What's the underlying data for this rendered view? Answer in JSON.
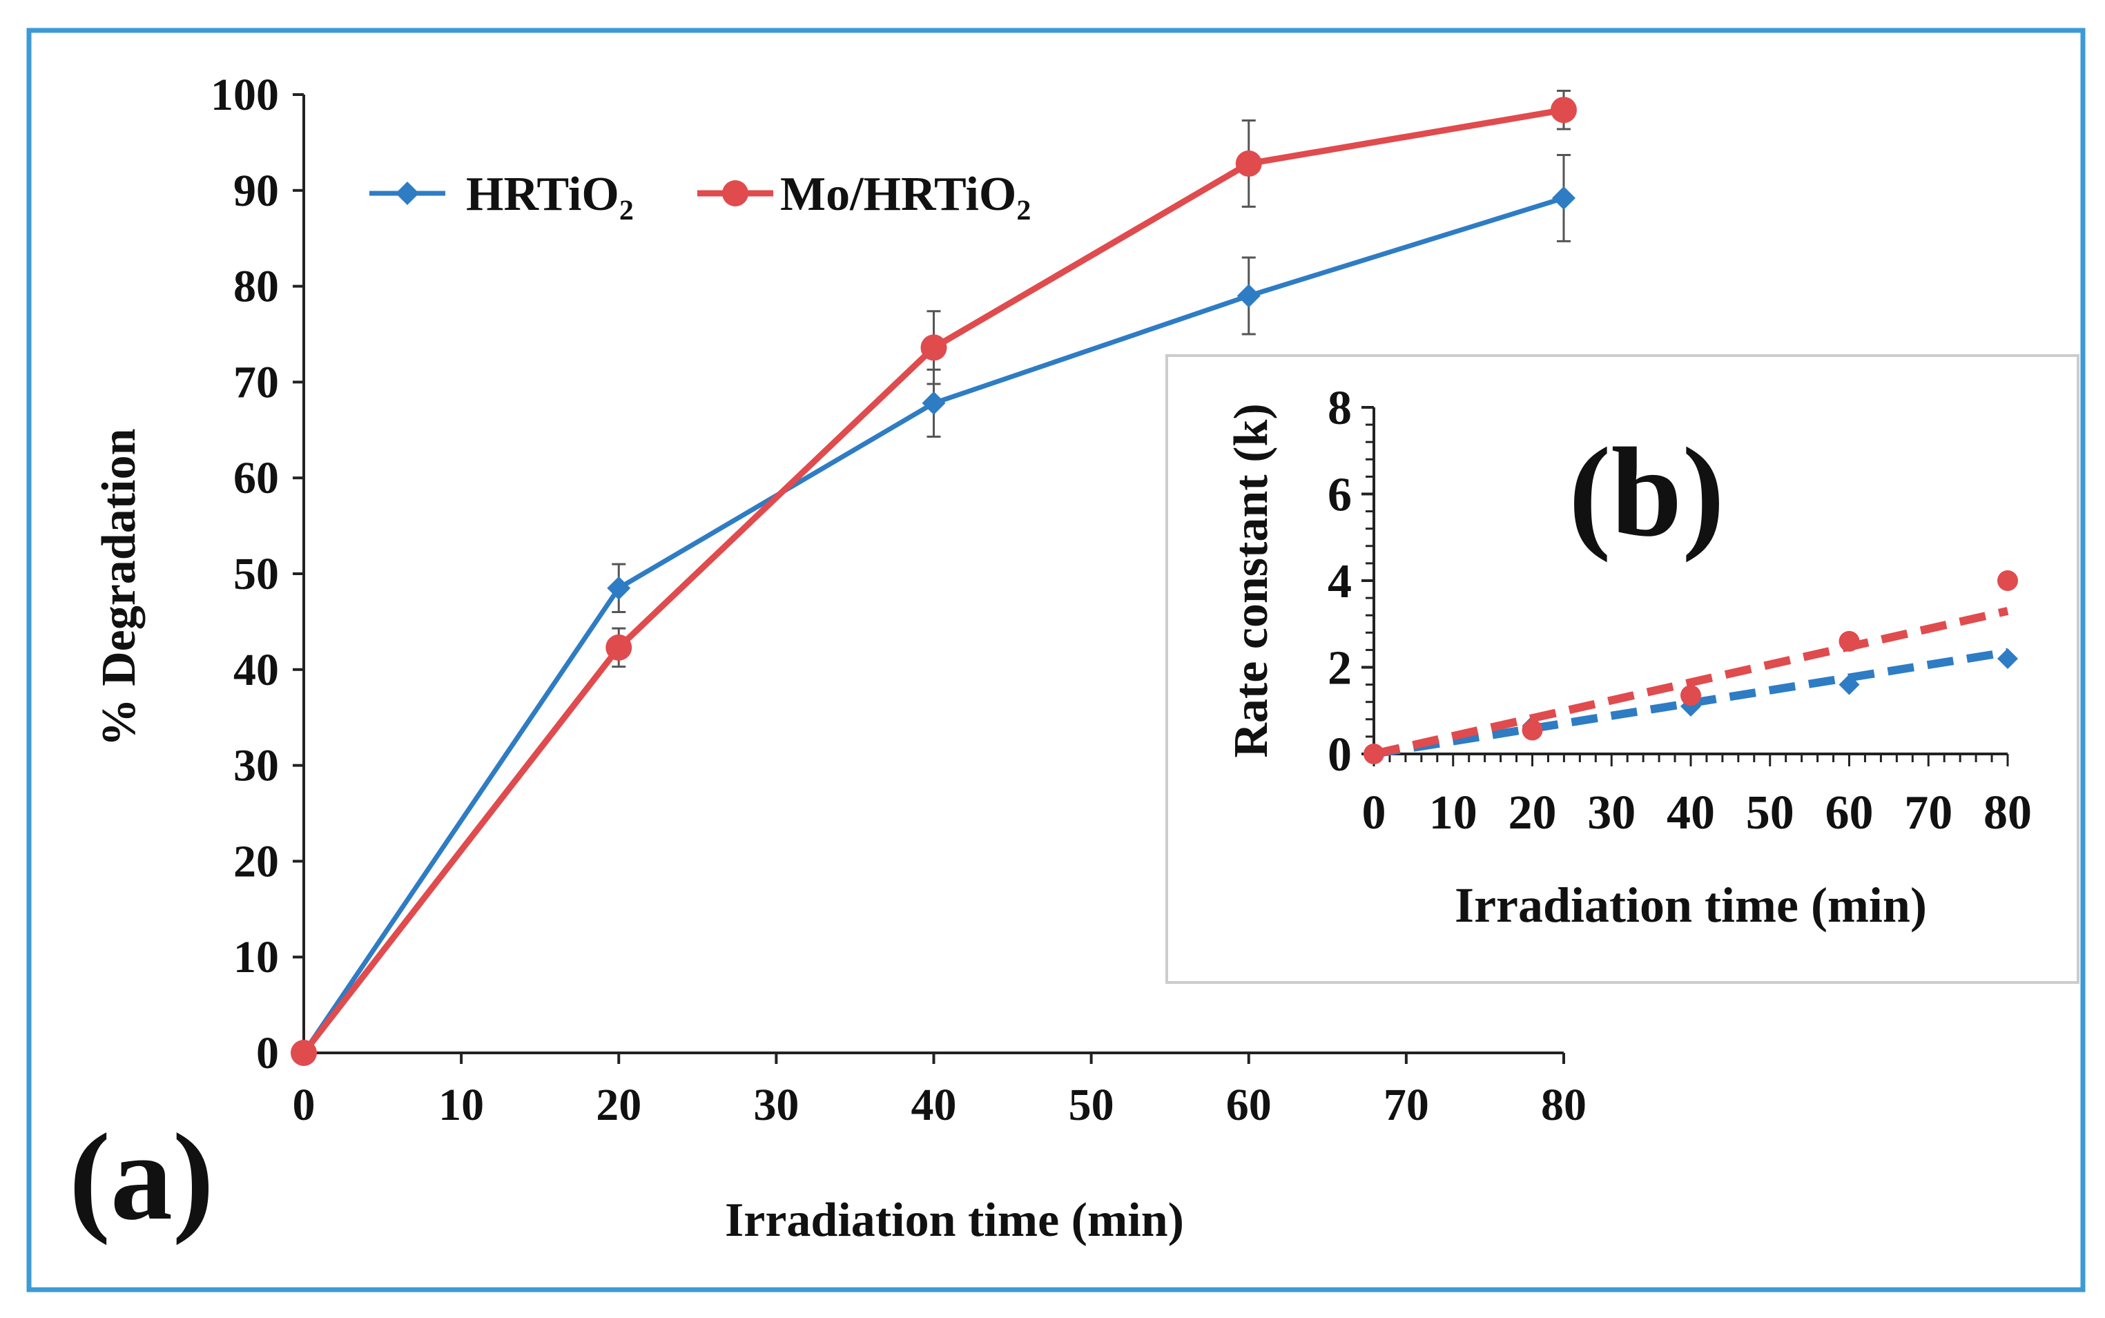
{
  "colors": {
    "hrtio2": "#2e7cc4",
    "mo_hrtio2": "#e04b4e",
    "frame": "#3c9ad6",
    "axis": "#222222",
    "error_bar": "#555555",
    "inset_border": "#cccccc"
  },
  "chart_data": [
    {
      "id": "a",
      "panel_label": "(a)",
      "type": "line",
      "xlabel": "Irradiation time (min)",
      "ylabel": "% Degradation",
      "xlim": [
        0,
        80
      ],
      "ylim": [
        0,
        100
      ],
      "x_ticks": [
        0,
        10,
        20,
        30,
        40,
        50,
        60,
        70,
        80
      ],
      "y_ticks": [
        0,
        10,
        20,
        30,
        40,
        50,
        60,
        70,
        80,
        90,
        100
      ],
      "legend_position": "top-left",
      "series": [
        {
          "name": "HRTiO₂",
          "color_key": "hrtio2",
          "marker": "diamond",
          "x": [
            0,
            20,
            40,
            60,
            80
          ],
          "y": [
            0,
            48.5,
            67.8,
            79,
            89.2
          ],
          "error": [
            0,
            2.5,
            3.5,
            4,
            4.5
          ]
        },
        {
          "name": "Mo/HRTiO₂",
          "color_key": "mo_hrtio2",
          "marker": "circle",
          "x": [
            0,
            20,
            40,
            60,
            80
          ],
          "y": [
            0,
            42.3,
            73.6,
            92.8,
            98.4
          ],
          "error": [
            0,
            2,
            3.8,
            4.5,
            2
          ]
        }
      ]
    },
    {
      "id": "b",
      "panel_label": "(b)",
      "type": "scatter",
      "xlabel": "Irradiation time (min)",
      "ylabel": "Rate constant (k)",
      "xlim": [
        0,
        80
      ],
      "ylim": [
        0,
        8
      ],
      "x_ticks": [
        0,
        10,
        20,
        30,
        40,
        50,
        60,
        70,
        80
      ],
      "y_ticks": [
        0,
        2,
        4,
        6,
        8
      ],
      "series": [
        {
          "name": "HRTiO₂",
          "color_key": "hrtio2",
          "marker": "diamond",
          "x": [
            0,
            20,
            40,
            60,
            80
          ],
          "y": [
            0,
            0.65,
            1.1,
            1.6,
            2.2
          ],
          "trend": [
            0,
            2.35
          ]
        },
        {
          "name": "Mo/HRTiO₂",
          "color_key": "mo_hrtio2",
          "marker": "circle",
          "x": [
            0,
            20,
            40,
            60,
            80
          ],
          "y": [
            0,
            0.55,
            1.35,
            2.6,
            4.0
          ],
          "trend": [
            0,
            3.3
          ]
        }
      ]
    }
  ]
}
